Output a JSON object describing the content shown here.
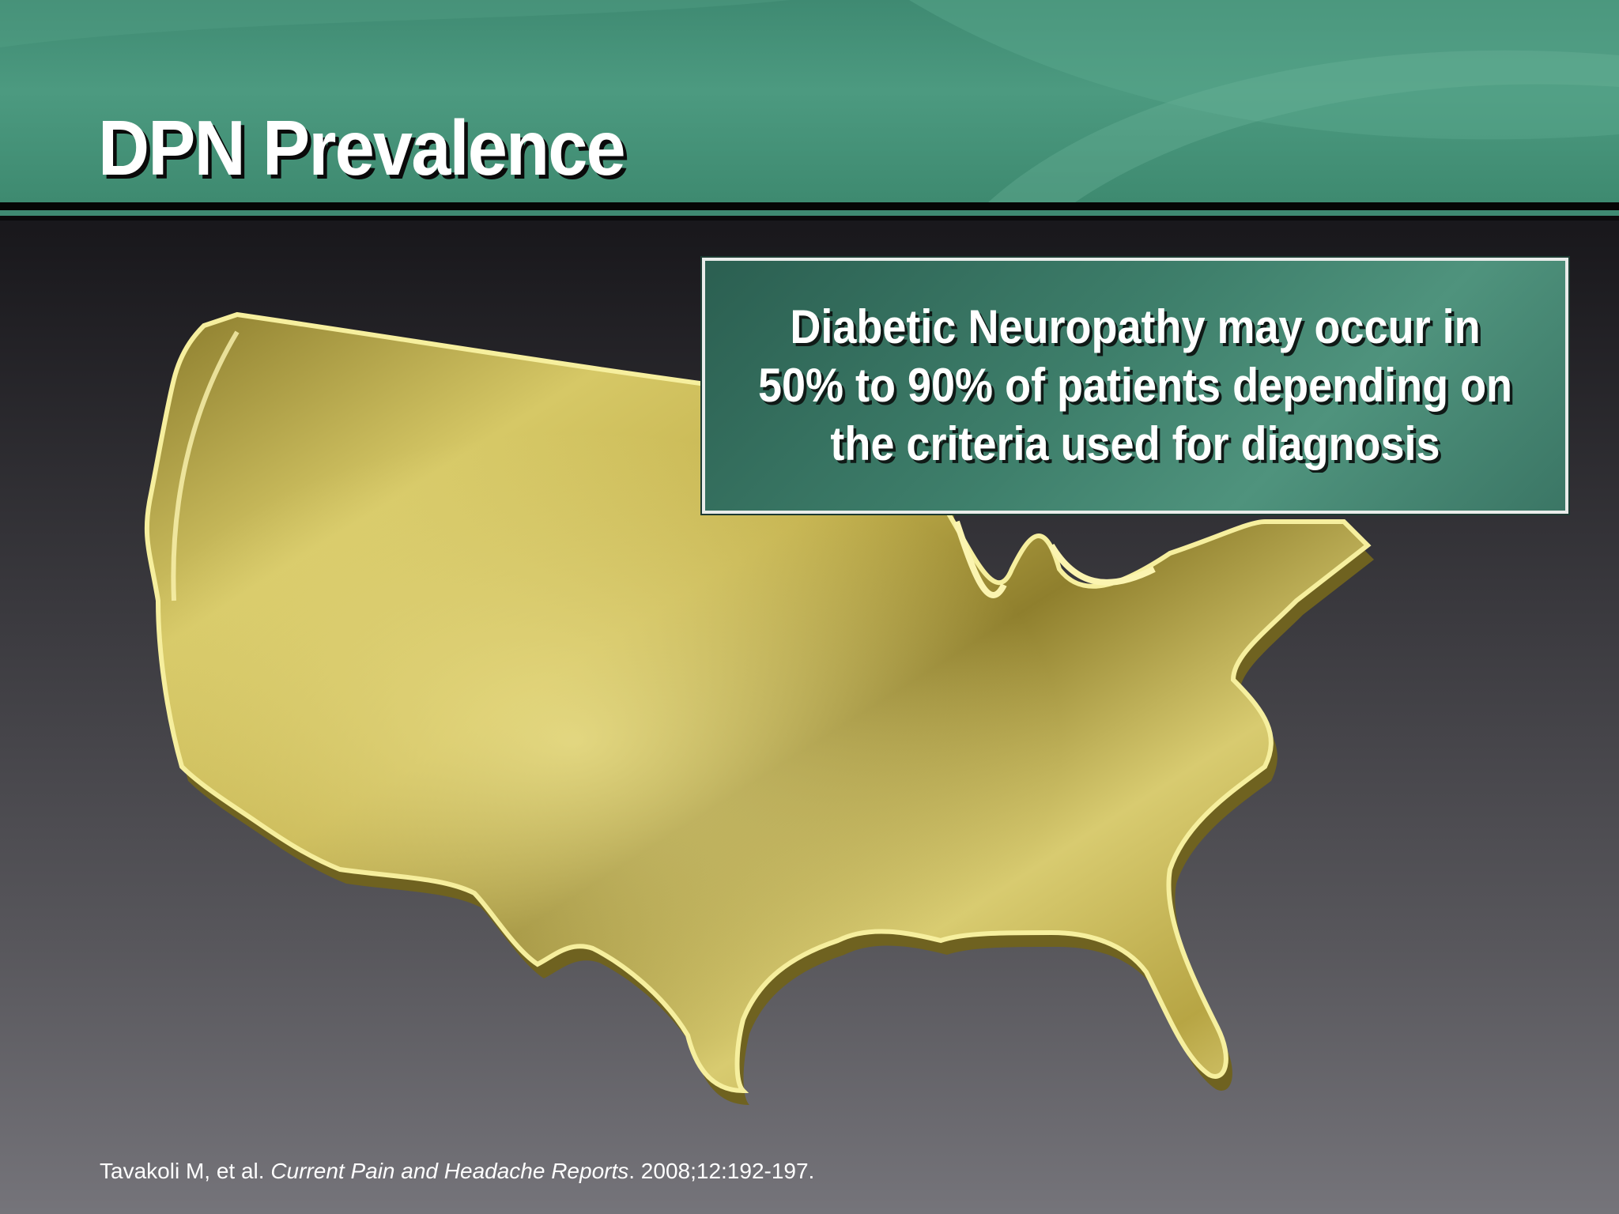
{
  "slide": {
    "title": "DPN Prevalence",
    "callout_text": "Diabetic Neuropathy may occur in 50% to 90% of patients depending on the criteria used for diagnosis",
    "citation": {
      "authors": "Tavakoli M, et al.",
      "journal": "Current Pain and Headache Reports",
      "details": ". 2008;12:192-197."
    }
  },
  "graphics": {
    "map_icon": "usa-map-gold-icon",
    "colors": {
      "header_green": "#4c9a80",
      "callout_green": "#3e7f6b",
      "map_gold": "#d9cb6a"
    }
  }
}
